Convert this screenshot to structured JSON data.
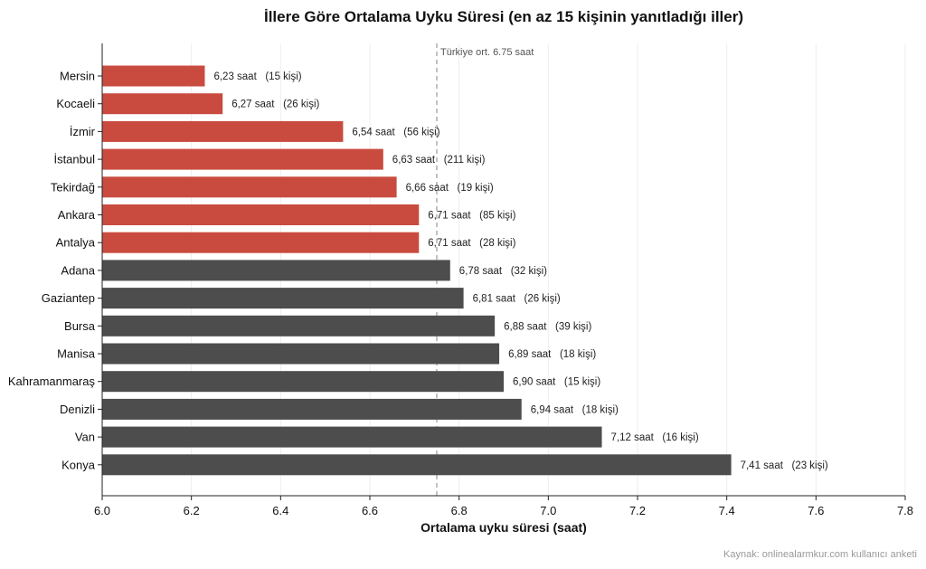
{
  "chart_data": {
    "type": "bar",
    "orientation": "horizontal",
    "title": "İllere Göre Ortalama Uyku Süresi  (en az 15 kişinin yanıtladığı iller)",
    "xlabel": "Ortalama uyku süresi (saat)",
    "xlim": [
      6.0,
      7.8
    ],
    "xticks": [
      "6.0",
      "6.2",
      "6.4",
      "6.6",
      "6.8",
      "7.0",
      "7.2",
      "7.4",
      "7.6",
      "7.8"
    ],
    "grid": "vertical",
    "categories": [
      "Mersin",
      "Kocaeli",
      "İzmir",
      "İstanbul",
      "Tekirdağ",
      "Ankara",
      "Antalya",
      "Adana",
      "Gaziantep",
      "Bursa",
      "Manisa",
      "Kahramanmaraş",
      "Denizli",
      "Van",
      "Konya"
    ],
    "values": [
      6.23,
      6.27,
      6.54,
      6.63,
      6.66,
      6.71,
      6.71,
      6.78,
      6.81,
      6.88,
      6.89,
      6.9,
      6.94,
      7.12,
      7.41
    ],
    "counts": [
      15,
      26,
      56,
      211,
      19,
      85,
      28,
      32,
      26,
      39,
      18,
      15,
      18,
      16,
      23
    ],
    "data_labels": [
      "6,23 saat   (15 kişi)",
      "6,27 saat   (26 kişi)",
      "6,54 saat   (56 kişi)",
      "6,63 saat   (211 kişi)",
      "6,66 saat   (19 kişi)",
      "6,71 saat   (85 kişi)",
      "6,71 saat   (28 kişi)",
      "6,78 saat   (32 kişi)",
      "6,81 saat   (26 kişi)",
      "6,88 saat   (39 kişi)",
      "6,89 saat   (18 kişi)",
      "6,90 saat   (15 kişi)",
      "6,94 saat   (18 kişi)",
      "7,12 saat   (16 kişi)",
      "7,41 saat   (23 kişi)"
    ],
    "colors": {
      "below_average": "#c94b3f",
      "above_average": "#4d4d4d",
      "reference_line": "#999999",
      "grid": "#eeeeee"
    },
    "reference_line": {
      "value": 6.75,
      "label": "Türkiye ort. 6.75 saat"
    },
    "source": "Kaynak: onlinealarmkur.com kullanıcı anketi"
  }
}
